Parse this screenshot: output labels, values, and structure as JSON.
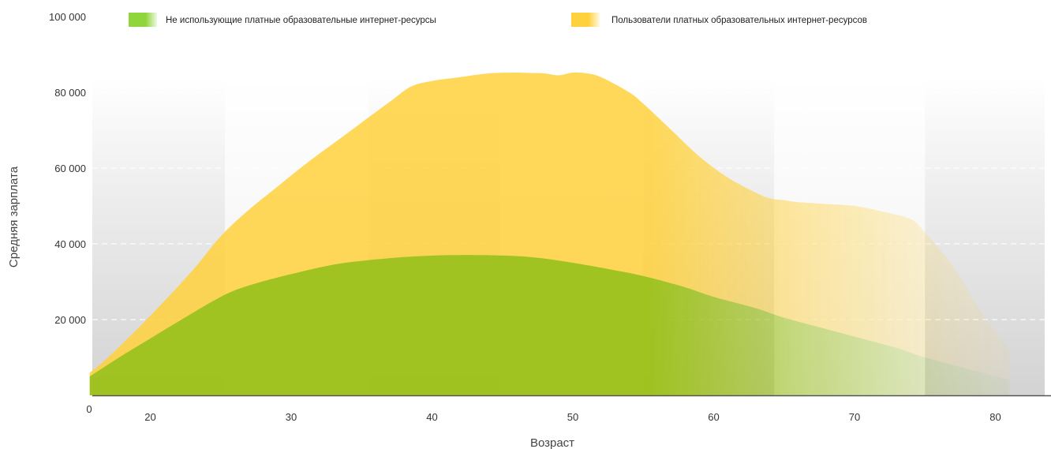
{
  "chart_data": {
    "type": "area",
    "xlabel": "Возраст",
    "ylabel": "Средняя зарплата",
    "xlim": [
      15.7,
      83.5
    ],
    "ylim": [
      0,
      100000
    ],
    "x_ticks": [
      20,
      30,
      40,
      50,
      60,
      70,
      80
    ],
    "y_ticks": [
      20000,
      40000,
      60000,
      80000,
      100000
    ],
    "y_tick_labels": [
      "20 000",
      "40 000",
      "60 000",
      "80 000",
      "100 000"
    ],
    "x_origin_label": "0",
    "grid": "horizontal dashed",
    "legend_position": "top",
    "bands": [
      {
        "from": 15.7,
        "to": 25.3,
        "shade": "dark"
      },
      {
        "from": 25.3,
        "to": 35.5,
        "shade": "light"
      },
      {
        "from": 35.5,
        "to": 44.8,
        "shade": "dark"
      },
      {
        "from": 44.8,
        "to": 55.0,
        "shade": "light"
      },
      {
        "from": 55.0,
        "to": 64.3,
        "shade": "dark"
      },
      {
        "from": 64.3,
        "to": 75.0,
        "shade": "light"
      },
      {
        "from": 75.0,
        "to": 83.5,
        "shade": "dark"
      }
    ],
    "series": [
      {
        "name": "Пользователи платных образовательных интернет-ресурсов",
        "color": "#FFD13D",
        "x": [
          15.7,
          17,
          20,
          23,
          25,
          27,
          29,
          31,
          33,
          35,
          37,
          38.5,
          40,
          42,
          44,
          46,
          47,
          48,
          49,
          50,
          51,
          52,
          54,
          55,
          57,
          59,
          61,
          63,
          64,
          65,
          66,
          68,
          70,
          72,
          74,
          75,
          77,
          79,
          81
        ],
        "values": [
          6000,
          10000,
          21000,
          33000,
          42000,
          49000,
          55000,
          61000,
          66500,
          72000,
          77500,
          81500,
          83000,
          84000,
          85000,
          85200,
          85100,
          85000,
          84500,
          85200,
          85000,
          84000,
          80000,
          77000,
          70000,
          63000,
          57500,
          53500,
          52000,
          51500,
          51000,
          50500,
          50000,
          48500,
          46500,
          43000,
          34000,
          22000,
          12000
        ]
      },
      {
        "name": "Не использующие платные образовательные интернет-ресурсы",
        "color": "#8FC01A",
        "x": [
          15.7,
          18,
          20,
          22,
          25,
          27,
          30,
          33,
          35,
          38,
          41,
          44,
          47,
          50,
          53,
          55,
          58,
          60,
          63,
          65,
          68,
          70,
          73,
          75,
          78,
          81
        ],
        "values": [
          5000,
          10500,
          15000,
          19500,
          26000,
          29000,
          32000,
          34500,
          35500,
          36500,
          37000,
          37000,
          36500,
          35000,
          33000,
          31500,
          28500,
          26000,
          23000,
          20500,
          17500,
          15500,
          12500,
          10000,
          7000,
          4000
        ]
      }
    ]
  }
}
